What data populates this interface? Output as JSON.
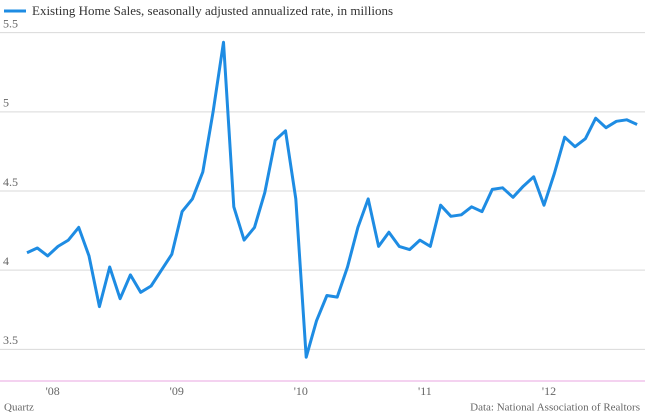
{
  "chart_data": {
    "type": "line",
    "categories": [
      null,
      null,
      "'08",
      null,
      null,
      null,
      null,
      null,
      null,
      null,
      null,
      null,
      null,
      null,
      "'09",
      null,
      null,
      null,
      null,
      null,
      null,
      null,
      null,
      null,
      null,
      null,
      "'10",
      null,
      null,
      null,
      null,
      null,
      null,
      null,
      null,
      null,
      null,
      null,
      "'11",
      null,
      null,
      null,
      null,
      null,
      null,
      null,
      null,
      null,
      null,
      null,
      "'12",
      null,
      null,
      null,
      null,
      null,
      null,
      null,
      null,
      null
    ],
    "series": [
      {
        "name": "Existing Home Sales, seasonally adjusted annualized rate, in millions",
        "color": "#1e8ce3",
        "values": [
          4.11,
          4.14,
          4.09,
          4.15,
          4.19,
          4.27,
          4.09,
          3.77,
          4.02,
          3.82,
          3.97,
          3.86,
          3.9,
          4.0,
          4.1,
          4.37,
          4.45,
          4.62,
          5.0,
          5.44,
          4.4,
          4.19,
          4.27,
          4.49,
          4.82,
          4.88,
          4.45,
          3.45,
          3.68,
          3.84,
          3.83,
          4.02,
          4.27,
          4.45,
          4.15,
          4.24,
          4.15,
          4.13,
          4.19,
          4.15,
          4.41,
          4.34,
          4.35,
          4.4,
          4.37,
          4.51,
          4.52,
          4.46,
          4.53,
          4.59,
          4.41,
          4.61,
          4.84,
          4.78,
          4.83,
          4.96,
          4.9,
          4.94,
          4.95,
          4.92
        ]
      }
    ],
    "ylim": [
      3.3,
      5.58
    ],
    "yticks": [
      3.5,
      4,
      4.5,
      5,
      5.5
    ],
    "grid": true,
    "source": "Data: National Association of Realtors",
    "credit": "Quartz"
  }
}
